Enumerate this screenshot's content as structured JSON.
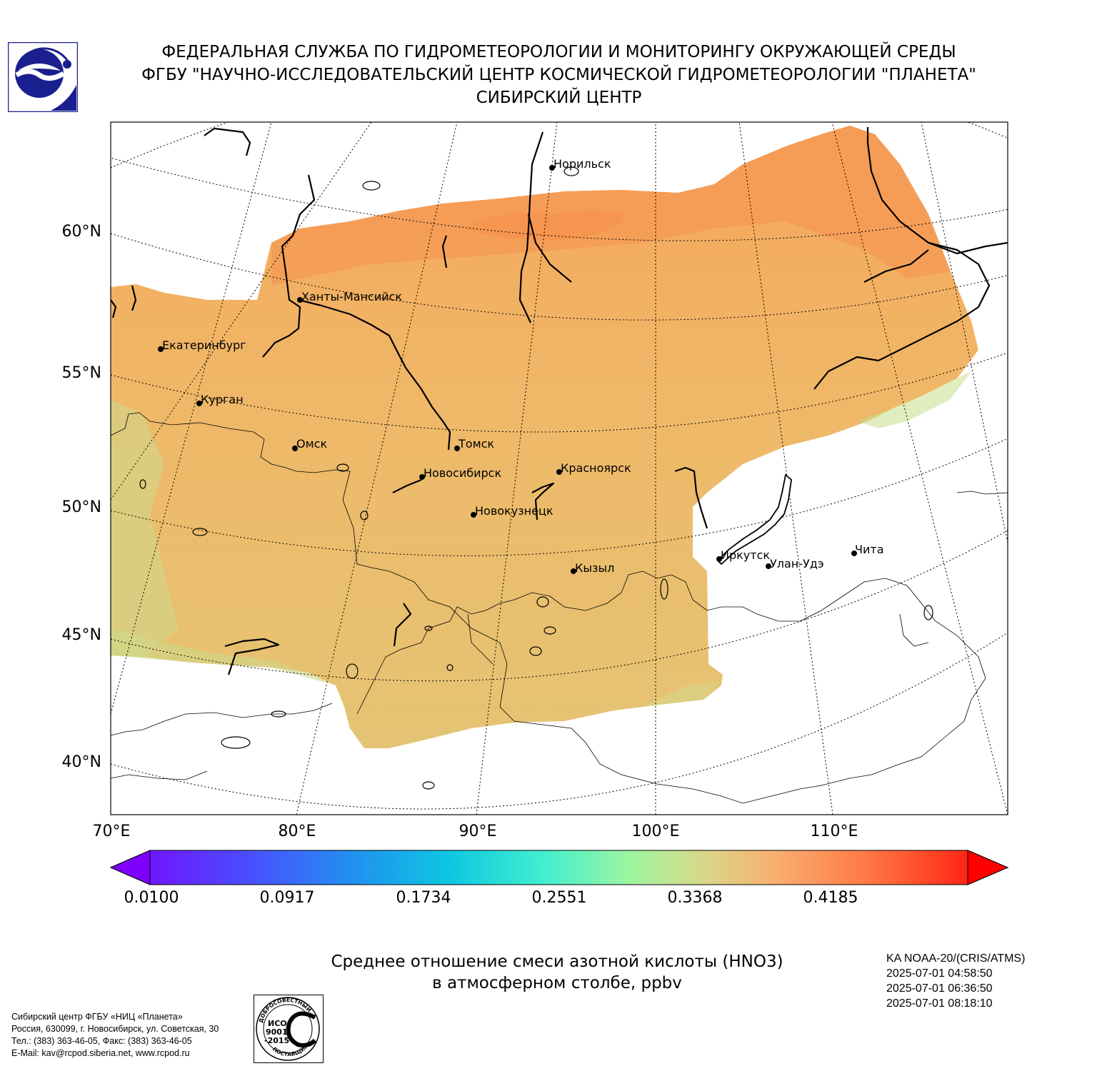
{
  "header": {
    "line1": "ФЕДЕРАЛЬНАЯ СЛУЖБА ПО ГИДРОМЕТЕОРОЛОГИИ И МОНИТОРИНГУ ОКРУЖАЮЩЕЙ СРЕДЫ",
    "line2": "ФГБУ \"НАУЧНО-ИССЛЕДОВАТЕЛЬСКИЙ ЦЕНТР КОСМИЧЕСКОЙ ГИДРОМЕТЕОРОЛОГИИ \"ПЛАНЕТА\"",
    "line3": "СИБИРСКИЙ ЦЕНТР"
  },
  "map": {
    "lat_labels": [
      "60°N",
      "55°N",
      "50°N",
      "45°N",
      "40°N"
    ],
    "lon_labels": [
      "70°E",
      "80°E",
      "90°E",
      "100°E",
      "110°E"
    ],
    "cities": [
      {
        "name": "Норильск"
      },
      {
        "name": "Ханты-Мансийск"
      },
      {
        "name": "Екатеринбург"
      },
      {
        "name": "Курган"
      },
      {
        "name": "Омск"
      },
      {
        "name": "Томск"
      },
      {
        "name": "Новосибирск"
      },
      {
        "name": "Красноярск"
      },
      {
        "name": "Новокузнецк"
      },
      {
        "name": "Иркутск"
      },
      {
        "name": "Улан-Удэ"
      },
      {
        "name": "Чита"
      },
      {
        "name": "Кызыл"
      }
    ],
    "colorbar_ticks": [
      "0.0100",
      "0.0917",
      "0.1734",
      "0.2551",
      "0.3368",
      "0.4185"
    ],
    "colors": {
      "field_orange": "#f4a25a",
      "field_light": "#e9c77a",
      "field_green": "#c8d984"
    }
  },
  "caption": {
    "line1": "Среднее отношение смеси азотной кислоты (HNO3)",
    "line2": "в атмосферном столбе, ppbv"
  },
  "satellite": {
    "name": "KA NOAA-20/(CRIS/ATMS)",
    "times": [
      "2025-07-01 04:58:50",
      "2025-07-01 06:36:50",
      "2025-07-01 08:18:10"
    ]
  },
  "contacts": {
    "line1": "Сибирский центр ФГБУ «НИЦ «Планета»",
    "line2": "Россия, 630099, г. Новосибирск, ул. Советская, 30",
    "line3": "Тел.: (383) 363-46-05, Факс: (383) 363-46-05",
    "line4": "E-Mail: kav@rcpod.siberia.net, www.rcpod.ru"
  },
  "iso_badge": {
    "top": "ДОБРОСОВЕСТНЫЙ",
    "l1": "ИСО",
    "l2": "9001",
    "l3": "-2015",
    "bottom": "ПОСТАВЩИК"
  }
}
